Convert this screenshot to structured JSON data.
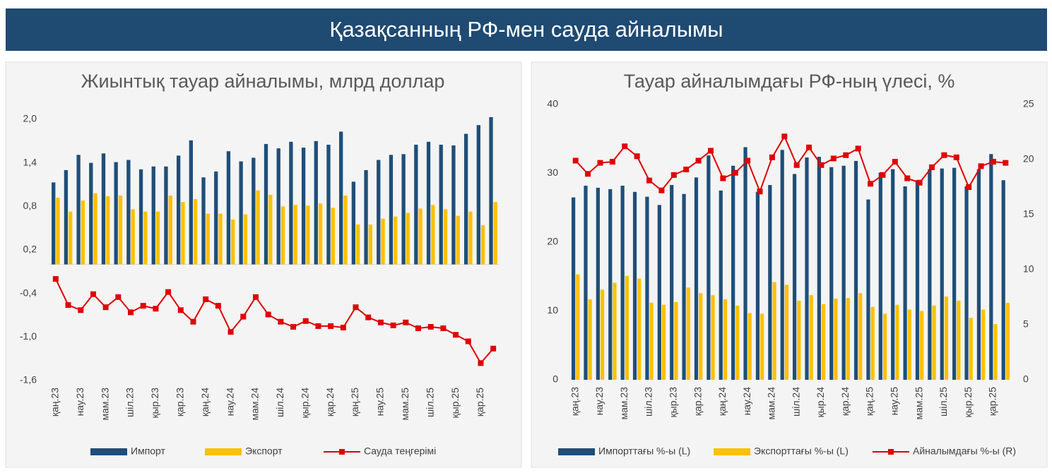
{
  "header": {
    "title": "Қазақсанның РФ-мен сауда айналымы"
  },
  "chart_data": [
    {
      "type": "bar",
      "title": "Жиынтық тауар айналымы, млрд доллар",
      "categories": [
        "қаң.23",
        null,
        "нау.23",
        null,
        "мам.23",
        null,
        "шіл.23",
        null,
        "қыр.23",
        null,
        "қар.23",
        null,
        "қаң.24",
        null,
        "нау.24",
        null,
        "мам.24",
        null,
        "шіл.24",
        null,
        "қыр.24",
        null,
        "қар.24",
        null,
        "қаң.25",
        null,
        "нау.25",
        null,
        "мам.25",
        null,
        "шіл.25",
        null,
        "қыр.25",
        null,
        "қар.25",
        null
      ],
      "series": [
        {
          "name": "Импорт",
          "color": "#1f4e79",
          "values": [
            1.13,
            1.3,
            1.51,
            1.4,
            1.53,
            1.41,
            1.44,
            1.31,
            1.35,
            1.35,
            1.5,
            1.71,
            1.2,
            1.28,
            1.56,
            1.42,
            1.47,
            1.66,
            1.6,
            1.69,
            1.61,
            1.7,
            1.65,
            1.83,
            1.14,
            1.3,
            1.44,
            1.51,
            1.52,
            1.65,
            1.69,
            1.65,
            1.64,
            1.8,
            1.92,
            2.03
          ]
        },
        {
          "name": "Экспорт",
          "color": "#ffc000",
          "values": [
            0.92,
            0.73,
            0.88,
            0.98,
            0.94,
            0.95,
            0.76,
            0.73,
            0.73,
            0.95,
            0.86,
            0.9,
            0.7,
            0.7,
            0.62,
            0.69,
            1.02,
            0.96,
            0.8,
            0.82,
            0.81,
            0.84,
            0.78,
            0.95,
            0.55,
            0.55,
            0.63,
            0.66,
            0.71,
            0.77,
            0.82,
            0.76,
            0.67,
            0.73,
            0.54,
            0.86
          ]
        },
        {
          "name": "Сауда теңгерімі",
          "type": "line",
          "color": "#e00000",
          "values": [
            -0.2,
            -0.56,
            -0.63,
            -0.41,
            -0.59,
            -0.45,
            -0.66,
            -0.57,
            -0.61,
            -0.38,
            -0.63,
            -0.79,
            -0.48,
            -0.57,
            -0.93,
            -0.72,
            -0.45,
            -0.69,
            -0.79,
            -0.86,
            -0.78,
            -0.85,
            -0.85,
            -0.87,
            -0.59,
            -0.73,
            -0.8,
            -0.84,
            -0.8,
            -0.88,
            -0.86,
            -0.88,
            -0.97,
            -1.06,
            -1.36,
            -1.16
          ]
        }
      ],
      "ylim": [
        -1.6,
        2.0
      ],
      "yticks": [
        {
          "value": 2.0,
          "label": "2,0"
        },
        {
          "value": 1.4,
          "label": "1,4"
        },
        {
          "value": 0.8,
          "label": "0,8"
        },
        {
          "value": 0.2,
          "label": "0,2"
        },
        {
          "value": -0.4,
          "label": "-0,4"
        },
        {
          "value": -1.0,
          "label": "-1,0"
        },
        {
          "value": -1.6,
          "label": "-1,6"
        }
      ],
      "grid": false
    },
    {
      "type": "bar",
      "title": "Тауар айналымдағы РФ-ның үлесі, %",
      "categories": [
        "қаң.23",
        null,
        "нау.23",
        null,
        "мам.23",
        null,
        "шіл.23",
        null,
        "қыр.23",
        null,
        "қар.23",
        null,
        "қаң.24",
        null,
        "нау.24",
        null,
        "мам.24",
        null,
        "шіл.24",
        null,
        "қыр.24",
        null,
        "қар.24",
        null,
        "қаң.25",
        null,
        "нау.25",
        null,
        "мам.25",
        null,
        "шіл.25",
        null,
        "қыр.25",
        null,
        "қар.25",
        null
      ],
      "series": [
        {
          "name": "Импорттағы %-ы (L)",
          "color": "#1f4e79",
          "values": [
            26.5,
            28.2,
            27.9,
            27.7,
            28.2,
            27.3,
            26.6,
            25.4,
            28.3,
            27.0,
            29.4,
            32.6,
            27.5,
            31.1,
            33.8,
            27.3,
            28.3,
            33.4,
            29.9,
            32.3,
            32.4,
            30.9,
            31.1,
            31.8,
            26.2,
            30.1,
            30.6,
            28.1,
            29.0,
            30.6,
            30.7,
            30.8,
            28.1,
            30.6,
            32.8,
            29.0
          ]
        },
        {
          "name": "Экспорттағы %-ы (L)",
          "color": "#ffc000",
          "values": [
            15.3,
            11.7,
            13.1,
            14.1,
            15.1,
            14.7,
            11.2,
            10.9,
            11.3,
            13.4,
            12.6,
            12.3,
            11.7,
            10.8,
            9.7,
            9.6,
            14.2,
            13.8,
            11.5,
            12.3,
            11.0,
            11.8,
            11.9,
            12.6,
            10.6,
            9.6,
            10.9,
            10.2,
            10.0,
            10.8,
            12.1,
            11.5,
            9.0,
            10.2,
            8.1,
            11.2
          ]
        },
        {
          "name": "Айналымдағы %-ы (R)",
          "type": "line",
          "axis": "y2",
          "color": "#e00000",
          "values": [
            19.9,
            18.7,
            19.7,
            19.8,
            21.2,
            20.3,
            18.1,
            17.2,
            18.6,
            19.1,
            19.9,
            20.8,
            18.3,
            18.8,
            19.9,
            17.1,
            20.2,
            22.1,
            19.5,
            21.1,
            19.5,
            20.1,
            20.4,
            21.0,
            17.8,
            18.6,
            19.8,
            18.3,
            17.9,
            19.3,
            20.4,
            20.2,
            17.5,
            19.4,
            19.8,
            19.7
          ]
        }
      ],
      "ylim": [
        0,
        40
      ],
      "yticks": [
        0,
        10,
        20,
        30,
        40
      ],
      "y2lim": [
        0,
        25
      ],
      "y2ticks": [
        0,
        5,
        10,
        15,
        20,
        25
      ],
      "grid": false
    }
  ]
}
